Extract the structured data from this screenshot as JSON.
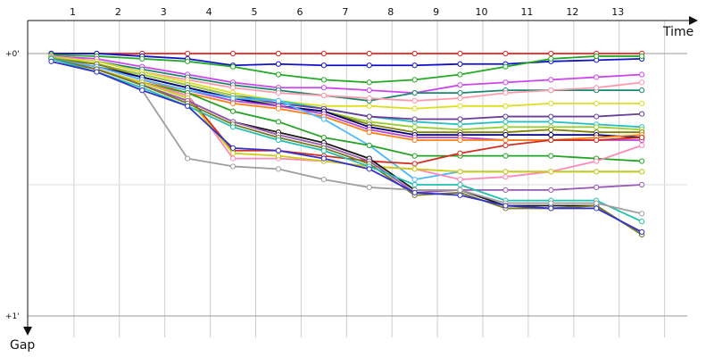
{
  "chart_data": {
    "type": "line",
    "title": "",
    "xlabel": "Time",
    "ylabel": "Gap",
    "x_ticks": [
      "1",
      "2",
      "3",
      "4",
      "5",
      "6",
      "7",
      "8",
      "9",
      "10",
      "11",
      "12",
      "13"
    ],
    "y_ticks": [
      "+0'",
      "+1'"
    ],
    "ylim": [
      0,
      1.03
    ],
    "xlim": [
      0.5,
      14.7
    ],
    "grid": true,
    "y_inverted": true,
    "series": [
      {
        "color": "#e52222",
        "values": [
          0,
          0,
          0,
          0,
          0,
          0,
          0,
          0,
          0,
          0,
          0,
          0,
          0,
          0
        ]
      },
      {
        "color": "#1010c8",
        "values": [
          0,
          0,
          0.01,
          0.02,
          0.045,
          0.04,
          0.045,
          0.045,
          0.045,
          0.04,
          0.04,
          0.03,
          0.025,
          0.02
        ]
      },
      {
        "color": "#22aa22",
        "values": [
          0.005,
          0.01,
          0.02,
          0.03,
          0.05,
          0.08,
          0.1,
          0.11,
          0.1,
          0.08,
          0.05,
          0.02,
          0.01,
          0.01
        ]
      },
      {
        "color": "#cc44ee",
        "values": [
          0.01,
          0.02,
          0.05,
          0.08,
          0.11,
          0.13,
          0.13,
          0.14,
          0.15,
          0.12,
          0.11,
          0.1,
          0.09,
          0.08
        ]
      },
      {
        "color": "#1a8870",
        "values": [
          0.01,
          0.03,
          0.06,
          0.09,
          0.12,
          0.14,
          0.16,
          0.18,
          0.15,
          0.15,
          0.14,
          0.14,
          0.14,
          0.14
        ]
      },
      {
        "color": "#ff99aa",
        "values": [
          0.01,
          0.03,
          0.07,
          0.1,
          0.13,
          0.15,
          0.16,
          0.17,
          0.18,
          0.17,
          0.15,
          0.14,
          0.13,
          0.11
        ]
      },
      {
        "color": "#dddd22",
        "values": [
          0.015,
          0.03,
          0.07,
          0.11,
          0.15,
          0.18,
          0.2,
          0.2,
          0.21,
          0.2,
          0.2,
          0.19,
          0.19,
          0.19
        ]
      },
      {
        "color": "#27c0c0",
        "values": [
          0.015,
          0.04,
          0.08,
          0.12,
          0.16,
          0.18,
          0.21,
          0.24,
          0.26,
          0.27,
          0.26,
          0.26,
          0.27,
          0.28
        ]
      },
      {
        "color": "#6a3d9a",
        "values": [
          0.02,
          0.04,
          0.08,
          0.12,
          0.16,
          0.19,
          0.21,
          0.24,
          0.25,
          0.25,
          0.24,
          0.24,
          0.24,
          0.23
        ]
      },
      {
        "color": "#9bcd30",
        "values": [
          0.015,
          0.04,
          0.08,
          0.12,
          0.16,
          0.2,
          0.22,
          0.26,
          0.28,
          0.29,
          0.28,
          0.28,
          0.28,
          0.29
        ]
      },
      {
        "color": "#808000",
        "values": [
          0.02,
          0.04,
          0.09,
          0.13,
          0.17,
          0.2,
          0.22,
          0.27,
          0.3,
          0.3,
          0.3,
          0.29,
          0.3,
          0.3
        ]
      },
      {
        "color": "#000080",
        "values": [
          0.02,
          0.05,
          0.09,
          0.13,
          0.17,
          0.2,
          0.22,
          0.28,
          0.31,
          0.31,
          0.31,
          0.31,
          0.31,
          0.32
        ]
      },
      {
        "color": "#b844d8",
        "values": [
          0.02,
          0.05,
          0.1,
          0.14,
          0.18,
          0.2,
          0.23,
          0.29,
          0.32,
          0.32,
          0.33,
          0.33,
          0.33,
          0.33
        ]
      },
      {
        "color": "#ff7f0e",
        "values": [
          0.02,
          0.05,
          0.1,
          0.15,
          0.19,
          0.21,
          0.24,
          0.3,
          0.33,
          0.33,
          0.33,
          0.33,
          0.32,
          0.31
        ]
      },
      {
        "color": "#4db8ff",
        "values": [
          0.02,
          0.05,
          0.1,
          0.14,
          0.17,
          0.18,
          0.25,
          0.35,
          0.48,
          0.45,
          0.45,
          0.45,
          0.45,
          0.45
        ]
      },
      {
        "color": "#23a323",
        "values": [
          0.02,
          0.06,
          0.11,
          0.15,
          0.22,
          0.26,
          0.32,
          0.35,
          0.39,
          0.39,
          0.39,
          0.39,
          0.4,
          0.41
        ]
      },
      {
        "color": "#d12e1e",
        "values": [
          0.02,
          0.06,
          0.11,
          0.16,
          0.37,
          0.37,
          0.39,
          0.41,
          0.42,
          0.38,
          0.35,
          0.33,
          0.33,
          0.32
        ]
      },
      {
        "color": "#ff88bb",
        "values": [
          0.02,
          0.06,
          0.11,
          0.16,
          0.4,
          0.4,
          0.41,
          0.43,
          0.44,
          0.48,
          0.47,
          0.45,
          0.41,
          0.35
        ]
      },
      {
        "color": "#cccc10",
        "values": [
          0.02,
          0.06,
          0.11,
          0.17,
          0.38,
          0.39,
          0.41,
          0.43,
          0.44,
          0.45,
          0.45,
          0.45,
          0.45,
          0.45
        ]
      },
      {
        "color": "#1a1a1a",
        "values": [
          0.02,
          0.06,
          0.12,
          0.18,
          0.26,
          0.3,
          0.34,
          0.4,
          0.52,
          0.52,
          0.58,
          0.58,
          0.58,
          0.69
        ]
      },
      {
        "color": "#9b59b6",
        "values": [
          0.02,
          0.06,
          0.12,
          0.18,
          0.26,
          0.31,
          0.35,
          0.41,
          0.53,
          0.52,
          0.52,
          0.52,
          0.51,
          0.5
        ]
      },
      {
        "color": "#7a7a22",
        "values": [
          0.02,
          0.06,
          0.12,
          0.19,
          0.27,
          0.32,
          0.36,
          0.42,
          0.54,
          0.53,
          0.59,
          0.59,
          0.58,
          0.69
        ]
      },
      {
        "color": "#20c0b0",
        "values": [
          0.02,
          0.07,
          0.13,
          0.2,
          0.28,
          0.33,
          0.37,
          0.43,
          0.5,
          0.5,
          0.56,
          0.56,
          0.56,
          0.64
        ]
      },
      {
        "color": "#9e9e9e",
        "values": [
          0.03,
          0.07,
          0.14,
          0.4,
          0.43,
          0.44,
          0.48,
          0.51,
          0.52,
          0.52,
          0.57,
          0.57,
          0.57,
          0.61
        ]
      },
      {
        "color": "#3333cc",
        "values": [
          0.03,
          0.07,
          0.14,
          0.2,
          0.36,
          0.37,
          0.4,
          0.44,
          0.53,
          0.54,
          0.58,
          0.59,
          0.59,
          0.68
        ]
      }
    ]
  }
}
